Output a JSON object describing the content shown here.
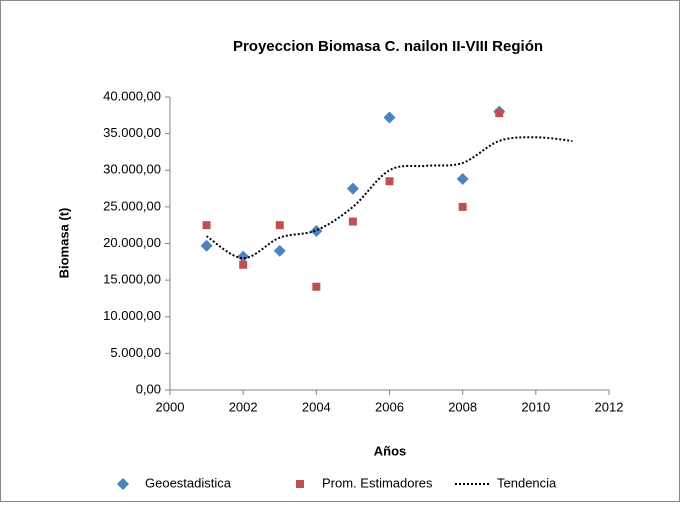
{
  "chart_data": {
    "type": "scatter",
    "title": "Proyeccion Biomasa C. nailon II-VIII Región",
    "x_label": "Años",
    "y_label": "Biomasa (t)",
    "xlim": [
      2000,
      2012
    ],
    "xticks": [
      2000,
      2002,
      2004,
      2006,
      2008,
      2010,
      2012
    ],
    "ylim": [
      0,
      40000
    ],
    "yticks": [
      {
        "value": 0,
        "label": "0,00"
      },
      {
        "value": 5000,
        "label": "5.000,00"
      },
      {
        "value": 10000,
        "label": "10.000,00"
      },
      {
        "value": 15000,
        "label": "15.000,00"
      },
      {
        "value": 20000,
        "label": "20.000,00"
      },
      {
        "value": 25000,
        "label": "25.000,00"
      },
      {
        "value": 30000,
        "label": "30.000,00"
      },
      {
        "value": 35000,
        "label": "35.000,00"
      },
      {
        "value": 40000,
        "label": "40.000,00"
      }
    ],
    "series": [
      {
        "name": "Geoestadistica",
        "color": "#4f81bd",
        "marker": "diamond",
        "x": [
          2001,
          2002,
          2003,
          2004,
          2005,
          2006,
          2008,
          2009
        ],
        "values": [
          19700,
          18200,
          19000,
          21700,
          27500,
          37200,
          28800,
          38000
        ]
      },
      {
        "name": "Prom. Estimadores",
        "color": "#c0504d",
        "marker": "square",
        "x": [
          2001,
          2002,
          2003,
          2004,
          2005,
          2006,
          2008,
          2009
        ],
        "values": [
          22500,
          17100,
          22500,
          14100,
          23000,
          28500,
          25000,
          37800
        ]
      },
      {
        "name": "Tendencia",
        "color": "#000000",
        "marker": "line",
        "x": [
          2001,
          2002,
          2003,
          2004,
          2005,
          2006,
          2007,
          2008,
          2009,
          2010,
          2011
        ],
        "values": [
          21000,
          18000,
          20800,
          21800,
          25000,
          30000,
          30600,
          31000,
          34000,
          34500,
          34000
        ]
      }
    ]
  }
}
